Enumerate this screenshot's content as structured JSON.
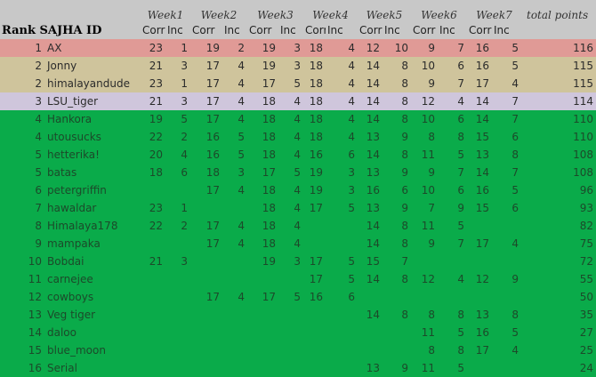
{
  "header": {
    "title": "Rank SAJHA ID",
    "weeks": [
      "Week1",
      "Week2",
      "Week3",
      "Week4",
      "Week5",
      "Week6",
      "Week7"
    ],
    "total_label": "total points",
    "corr_label": "Corr",
    "inc_label": "Inc"
  },
  "colors": {
    "header": "#c8c8c8",
    "first": "#e09a96",
    "second": "#cfc49c",
    "third": "#cfc6dc",
    "rest": "#0aab4a"
  },
  "rows": [
    {
      "rank": "1",
      "id": "AX",
      "weeks": [
        [
          23,
          1
        ],
        [
          19,
          2
        ],
        [
          19,
          3
        ],
        [
          18,
          4
        ],
        [
          12,
          10
        ],
        [
          9,
          7
        ],
        [
          16,
          5
        ]
      ],
      "total": 116,
      "tier": "first"
    },
    {
      "rank": "2",
      "id": "Jonny",
      "weeks": [
        [
          21,
          3
        ],
        [
          17,
          4
        ],
        [
          19,
          3
        ],
        [
          18,
          4
        ],
        [
          14,
          8
        ],
        [
          10,
          6
        ],
        [
          16,
          5
        ]
      ],
      "total": 115,
      "tier": "second"
    },
    {
      "rank": "2",
      "id": "himalayandude",
      "weeks": [
        [
          23,
          1
        ],
        [
          17,
          4
        ],
        [
          17,
          5
        ],
        [
          18,
          4
        ],
        [
          14,
          8
        ],
        [
          9,
          7
        ],
        [
          17,
          4
        ]
      ],
      "total": 115,
      "tier": "second"
    },
    {
      "rank": "3",
      "id": "LSU_tiger",
      "weeks": [
        [
          21,
          3
        ],
        [
          17,
          4
        ],
        [
          18,
          4
        ],
        [
          18,
          4
        ],
        [
          14,
          8
        ],
        [
          12,
          4
        ],
        [
          14,
          7
        ]
      ],
      "total": 114,
      "tier": "third"
    },
    {
      "rank": "4",
      "id": "Hankora",
      "weeks": [
        [
          19,
          5
        ],
        [
          17,
          4
        ],
        [
          18,
          4
        ],
        [
          18,
          4
        ],
        [
          14,
          8
        ],
        [
          10,
          6
        ],
        [
          14,
          7
        ]
      ],
      "total": 110,
      "tier": "rest"
    },
    {
      "rank": "4",
      "id": "utousucks",
      "weeks": [
        [
          22,
          2
        ],
        [
          16,
          5
        ],
        [
          18,
          4
        ],
        [
          18,
          4
        ],
        [
          13,
          9
        ],
        [
          8,
          8
        ],
        [
          15,
          6
        ]
      ],
      "total": 110,
      "tier": "rest"
    },
    {
      "rank": "5",
      "id": "hetterika!",
      "weeks": [
        [
          20,
          4
        ],
        [
          16,
          5
        ],
        [
          18,
          4
        ],
        [
          16,
          6
        ],
        [
          14,
          8
        ],
        [
          11,
          5
        ],
        [
          13,
          8
        ]
      ],
      "total": 108,
      "tier": "rest"
    },
    {
      "rank": "5",
      "id": "batas",
      "weeks": [
        [
          18,
          6
        ],
        [
          18,
          3
        ],
        [
          17,
          5
        ],
        [
          19,
          3
        ],
        [
          13,
          9
        ],
        [
          9,
          7
        ],
        [
          14,
          7
        ]
      ],
      "total": 108,
      "tier": "rest"
    },
    {
      "rank": "6",
      "id": "petergriffin",
      "weeks": [
        null,
        [
          17,
          4
        ],
        [
          18,
          4
        ],
        [
          19,
          3
        ],
        [
          16,
          6
        ],
        [
          10,
          6
        ],
        [
          16,
          5
        ]
      ],
      "total": 96,
      "tier": "rest"
    },
    {
      "rank": "7",
      "id": "hawaldar",
      "weeks": [
        [
          23,
          1
        ],
        null,
        [
          18,
          4
        ],
        [
          17,
          5
        ],
        [
          13,
          9
        ],
        [
          7,
          9
        ],
        [
          15,
          6
        ]
      ],
      "total": 93,
      "tier": "rest"
    },
    {
      "rank": "8",
      "id": "Himalaya178",
      "weeks": [
        [
          22,
          2
        ],
        [
          17,
          4
        ],
        [
          18,
          4
        ],
        null,
        [
          14,
          8
        ],
        [
          11,
          5
        ],
        null
      ],
      "total": 82,
      "tier": "rest"
    },
    {
      "rank": "9",
      "id": "mampaka",
      "weeks": [
        null,
        [
          17,
          4
        ],
        [
          18,
          4
        ],
        null,
        [
          14,
          8
        ],
        [
          9,
          7
        ],
        [
          17,
          4
        ]
      ],
      "total": 75,
      "tier": "rest"
    },
    {
      "rank": "10",
      "id": "Bobdai",
      "weeks": [
        [
          21,
          3
        ],
        null,
        [
          19,
          3
        ],
        [
          17,
          5
        ],
        [
          15,
          7
        ],
        null,
        null
      ],
      "total": 72,
      "tier": "rest"
    },
    {
      "rank": "11",
      "id": "carnejee",
      "weeks": [
        null,
        null,
        null,
        [
          17,
          5
        ],
        [
          14,
          8
        ],
        [
          12,
          4
        ],
        [
          12,
          9
        ]
      ],
      "total": 55,
      "tier": "rest"
    },
    {
      "rank": "12",
      "id": "cowboys",
      "weeks": [
        null,
        [
          17,
          4
        ],
        [
          17,
          5
        ],
        [
          16,
          6
        ],
        null,
        null,
        null
      ],
      "total": 50,
      "tier": "rest"
    },
    {
      "rank": "13",
      "id": "Veg tiger",
      "weeks": [
        null,
        null,
        null,
        null,
        [
          14,
          8
        ],
        [
          8,
          8
        ],
        [
          13,
          8
        ]
      ],
      "total": 35,
      "tier": "rest"
    },
    {
      "rank": "14",
      "id": "daloo",
      "weeks": [
        null,
        null,
        null,
        null,
        null,
        [
          11,
          5
        ],
        [
          16,
          5
        ]
      ],
      "total": 27,
      "tier": "rest"
    },
    {
      "rank": "15",
      "id": "blue_moon",
      "weeks": [
        null,
        null,
        null,
        null,
        null,
        [
          8,
          8
        ],
        [
          17,
          4
        ]
      ],
      "total": 25,
      "tier": "rest"
    },
    {
      "rank": "16",
      "id": "Serial",
      "weeks": [
        null,
        null,
        null,
        null,
        [
          13,
          9
        ],
        [
          11,
          5
        ],
        null
      ],
      "total": 24,
      "tier": "rest"
    }
  ]
}
